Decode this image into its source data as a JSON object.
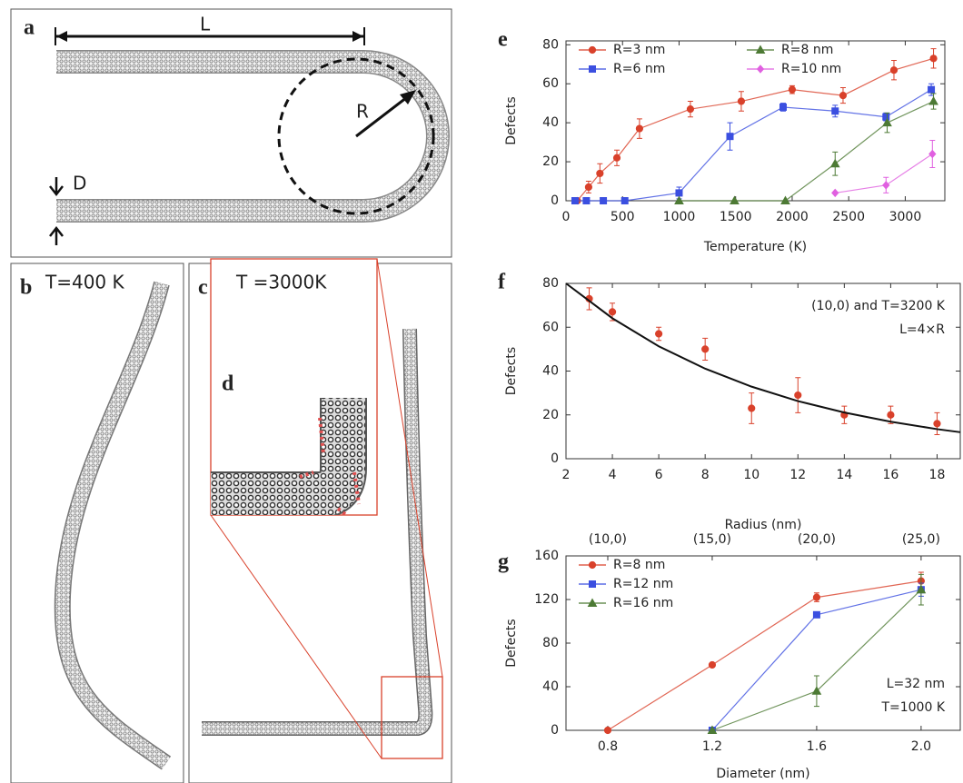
{
  "panels": {
    "a": "a",
    "b": "b",
    "c": "c",
    "d": "d",
    "length": "L",
    "radius": "R",
    "diameter": "D",
    "b_temp": "T=400 K",
    "c_temp": "T =3000K"
  },
  "chart_data": [
    {
      "type": "line",
      "panel_label": "e",
      "xlabel": "Temperature (K)",
      "ylabel": "Defects",
      "xlim": [
        0,
        3350
      ],
      "ylim": [
        0,
        82
      ],
      "xticks": [
        0,
        500,
        1000,
        1500,
        2000,
        2500,
        3000
      ],
      "yticks": [
        0,
        20,
        40,
        60,
        80
      ],
      "legend": "upper left",
      "series": [
        {
          "name": "R=3 nm",
          "color": "#d9412b",
          "marker": "circle",
          "x": [
            100,
            200,
            300,
            450,
            650,
            1100,
            1550,
            2000,
            2450,
            2900,
            3250
          ],
          "values": [
            0,
            7,
            14,
            22,
            37,
            47,
            51,
            57,
            54,
            67,
            73
          ],
          "errors": [
            0,
            3,
            5,
            4,
            5,
            4,
            5,
            2,
            4,
            5,
            5
          ]
        },
        {
          "name": "R=6 nm",
          "color": "#3b4fe0",
          "marker": "square",
          "x": [
            80,
            180,
            330,
            520,
            1000,
            1450,
            1920,
            2380,
            2830,
            3230
          ],
          "values": [
            0,
            0,
            0,
            0,
            4,
            33,
            48,
            46,
            43,
            57
          ],
          "errors": [
            0,
            0,
            0,
            0,
            3,
            7,
            2,
            3,
            2,
            3
          ]
        },
        {
          "name": "R=8 nm",
          "color": "#4d7a35",
          "marker": "triangle",
          "x": [
            1000,
            1490,
            1940,
            2380,
            2840,
            3250
          ],
          "values": [
            0,
            0,
            0,
            19,
            40,
            51
          ],
          "errors": [
            0,
            0,
            0,
            6,
            5,
            4
          ]
        },
        {
          "name": "R=10 nm",
          "color": "#e060e0",
          "marker": "diamond",
          "x": [
            2380,
            2830,
            3240
          ],
          "values": [
            4,
            8,
            24
          ],
          "errors": [
            0,
            4,
            7
          ]
        }
      ]
    },
    {
      "type": "line",
      "panel_label": "f",
      "xlabel": "Radius (nm)",
      "ylabel": "Defects",
      "xlim": [
        2,
        19
      ],
      "ylim": [
        0,
        80
      ],
      "xticks": [
        2,
        4,
        6,
        8,
        10,
        12,
        14,
        16,
        18
      ],
      "yticks": [
        0,
        20,
        40,
        60,
        80
      ],
      "annotations": [
        "(10,0) and T=3200 K",
        "L=4×R"
      ],
      "series": [
        {
          "color": "#d9412b",
          "marker": "circle",
          "line": false,
          "x": [
            3,
            4,
            6,
            8,
            10,
            12,
            14,
            16,
            18
          ],
          "values": [
            73,
            67,
            57,
            50,
            23,
            29,
            20,
            20,
            16
          ],
          "errors": [
            5,
            4,
            3,
            5,
            7,
            8,
            4,
            4,
            5
          ]
        },
        {
          "color": "#111111",
          "x": [
            2,
            4,
            6,
            8,
            10,
            12,
            14,
            16,
            18,
            19
          ],
          "values": [
            80,
            64.1,
            51.3,
            41.1,
            32.9,
            26.3,
            21.1,
            16.9,
            13.5,
            12.1
          ]
        }
      ]
    },
    {
      "type": "line",
      "panel_label": "g",
      "xlabel": "Diameter (nm)",
      "ylabel": "Defects",
      "xlim": [
        0.64,
        2.15
      ],
      "ylim": [
        0,
        160
      ],
      "xticks": [
        0.8,
        1.2,
        1.6,
        {
          "value": 2,
          "label": "2.0"
        }
      ],
      "x2ticks": [
        {
          "value": 0.8,
          "label": "(10,0)"
        },
        {
          "value": 1.2,
          "label": "(15,0)"
        },
        {
          "value": 1.6,
          "label": "(20,0)"
        },
        {
          "value": 2,
          "label": "(25,0)"
        }
      ],
      "yticks": [
        0,
        40,
        80,
        120,
        160
      ],
      "legend": "upper left",
      "annotations": [
        "L=32 nm",
        "T=1000 K"
      ],
      "series": [
        {
          "name": "R=8 nm",
          "color": "#d9412b",
          "marker": "circle",
          "x": [
            0.8,
            1.2,
            1.6,
            2.0
          ],
          "values": [
            0,
            60,
            122,
            137
          ],
          "errors": [
            0,
            0,
            4,
            8
          ]
        },
        {
          "name": "R=12 nm",
          "color": "#3b4fe0",
          "marker": "square",
          "x": [
            1.2,
            1.6,
            2.0
          ],
          "values": [
            0,
            106,
            129
          ],
          "errors": [
            0,
            2,
            6
          ]
        },
        {
          "name": "R=16 nm",
          "color": "#4d7a35",
          "marker": "triangle",
          "x": [
            1.2,
            1.6,
            2.0
          ],
          "values": [
            0,
            36,
            129
          ],
          "errors": [
            0,
            14,
            14
          ]
        }
      ]
    }
  ]
}
